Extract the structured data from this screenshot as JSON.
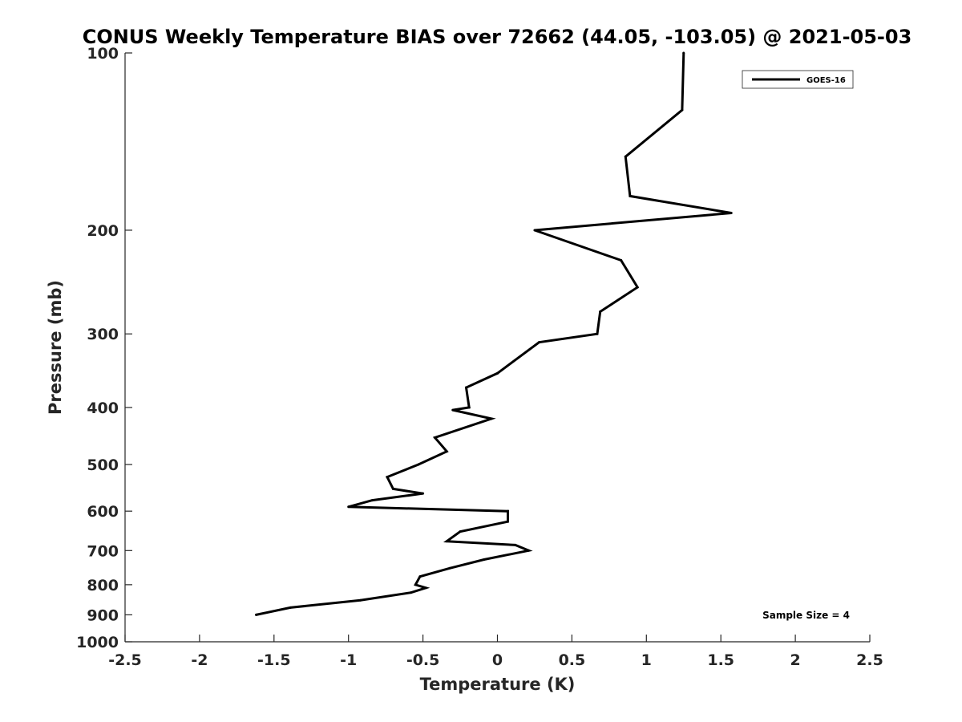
{
  "chart_data": {
    "type": "line",
    "title": "CONUS Weekly Temperature BIAS over 72662 (44.05, -103.05) @ 2021-05-03",
    "xlabel": "Temperature (K)",
    "ylabel": "Pressure (mb)",
    "xlim": [
      -2.5,
      2.5
    ],
    "ylim": [
      100,
      1000
    ],
    "yscale": "log",
    "yreversed": true,
    "x_ticks": [
      "-2.5",
      "-2",
      "-1.5",
      "-1",
      "-0.5",
      "0",
      "0.5",
      "1",
      "1.5",
      "2",
      "2.5"
    ],
    "y_ticks": [
      {
        "value": 100,
        "label": "100"
      },
      {
        "value": 200,
        "label": "200"
      },
      {
        "value": 300,
        "label": "300"
      },
      {
        "value": 400,
        "label": "400"
      },
      {
        "value": 500,
        "label": "500"
      },
      {
        "value": 600,
        "label": "600"
      },
      {
        "value": 700,
        "label": "700"
      },
      {
        "value": 800,
        "label": "800"
      },
      {
        "value": 900,
        "label": "900"
      },
      {
        "value": 1000,
        "label": "1000"
      }
    ],
    "grid": false,
    "legend": "top-right",
    "series": [
      {
        "name": "GOES-16",
        "color": "#000000",
        "points": [
          {
            "x": 1.25,
            "p": 100
          },
          {
            "x": 1.24,
            "p": 125
          },
          {
            "x": 0.86,
            "p": 150
          },
          {
            "x": 0.89,
            "p": 175
          },
          {
            "x": 1.57,
            "p": 187
          },
          {
            "x": 0.25,
            "p": 200
          },
          {
            "x": 0.83,
            "p": 225
          },
          {
            "x": 0.94,
            "p": 250
          },
          {
            "x": 0.69,
            "p": 275
          },
          {
            "x": 0.67,
            "p": 300
          },
          {
            "x": 0.28,
            "p": 310
          },
          {
            "x": 0.0,
            "p": 350
          },
          {
            "x": -0.21,
            "p": 370
          },
          {
            "x": -0.19,
            "p": 400
          },
          {
            "x": -0.3,
            "p": 404
          },
          {
            "x": -0.04,
            "p": 418
          },
          {
            "x": -0.42,
            "p": 450
          },
          {
            "x": -0.34,
            "p": 475
          },
          {
            "x": -0.53,
            "p": 500
          },
          {
            "x": -0.74,
            "p": 525
          },
          {
            "x": -0.7,
            "p": 550
          },
          {
            "x": -0.5,
            "p": 560
          },
          {
            "x": -0.84,
            "p": 575
          },
          {
            "x": -1.0,
            "p": 590
          },
          {
            "x": 0.07,
            "p": 600
          },
          {
            "x": 0.07,
            "p": 625
          },
          {
            "x": -0.25,
            "p": 650
          },
          {
            "x": -0.34,
            "p": 675
          },
          {
            "x": 0.12,
            "p": 685
          },
          {
            "x": 0.21,
            "p": 700
          },
          {
            "x": -0.09,
            "p": 725
          },
          {
            "x": -0.32,
            "p": 750
          },
          {
            "x": -0.52,
            "p": 775
          },
          {
            "x": -0.55,
            "p": 800
          },
          {
            "x": -0.48,
            "p": 810
          },
          {
            "x": -0.58,
            "p": 825
          },
          {
            "x": -0.92,
            "p": 850
          },
          {
            "x": -1.39,
            "p": 875
          },
          {
            "x": -1.62,
            "p": 900
          }
        ]
      }
    ],
    "annotations": [
      "Sample Size = 4"
    ]
  }
}
